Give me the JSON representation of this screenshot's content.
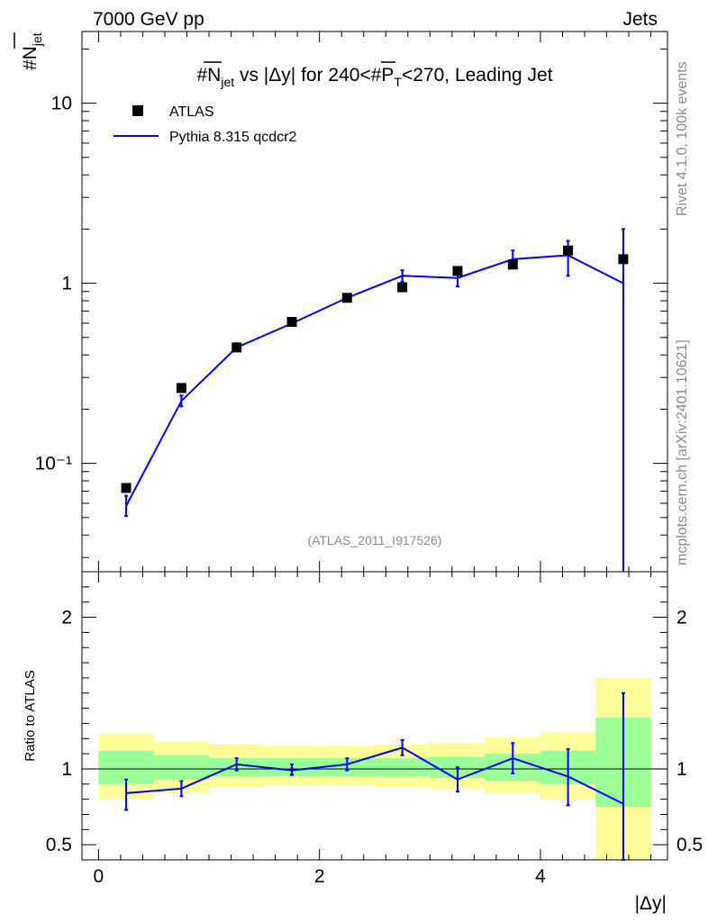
{
  "header": {
    "energy_label": "7000 GeV pp",
    "category_label": "Jets",
    "rivet_label": "Rivet 4.1.0,  100k events",
    "mcplots_label": "mcplots.cern.ch [arXiv:2401.10621]",
    "analysis_label": "(ATLAS_2011_I917526)"
  },
  "chart_data": {
    "type": "line",
    "title": "#N̅jet vs |Δy| for 240<#P̅T<270, Leading Jet",
    "title_parts": {
      "pre": "#",
      "n": "N",
      "jet": "jet",
      "mid": " vs |Δy| for 240<#",
      "p": "P",
      "t": "T",
      "post": "<270, Leading Jet"
    },
    "ylabel_parts": {
      "hash": "#",
      "n": "N",
      "jet": "jet"
    },
    "xlabel": "|Δy|",
    "ratio_ylabel": "Ratio to ATLAS",
    "xlim": [
      -0.15,
      5.15
    ],
    "ylim_main": [
      0.025,
      25
    ],
    "ylim_ratio": [
      0.4,
      2.3
    ],
    "yscale_main": "log",
    "xticks": [
      "0",
      "2",
      "4"
    ],
    "main_yticks": [
      "10⁻¹",
      "1",
      "10"
    ],
    "ratio_yticks": [
      "0.5",
      "1",
      "2"
    ],
    "legend": [
      {
        "name": "ATLAS",
        "marker": "square",
        "color": "#000000"
      },
      {
        "name": "Pythia 8.315 qcdcr2",
        "marker": "line",
        "color": "#0000ee"
      }
    ],
    "x_edges": [
      0,
      0.5,
      1,
      1.5,
      2,
      2.5,
      3,
      3.5,
      4,
      4.5,
      5
    ],
    "x_centers": [
      0.25,
      0.75,
      1.25,
      1.75,
      2.25,
      2.75,
      3.25,
      3.75,
      4.25,
      4.75
    ],
    "data_values": [
      0.073,
      0.262,
      0.44,
      0.61,
      0.83,
      0.95,
      1.17,
      1.27,
      1.52,
      1.36
    ],
    "mc_values": [
      0.058,
      0.222,
      0.44,
      0.598,
      0.83,
      1.1,
      1.07,
      1.36,
      1.43,
      1.0
    ],
    "mc_err_low": [
      0.051,
      0.207,
      0.42,
      0.58,
      0.8,
      1.02,
      0.96,
      1.23,
      1.1,
      0.001
    ],
    "mc_err_high": [
      0.066,
      0.238,
      0.465,
      0.617,
      0.86,
      1.18,
      1.17,
      1.52,
      1.72,
      2.0
    ],
    "ratio_mc": [
      0.84,
      0.87,
      1.03,
      0.99,
      1.03,
      1.14,
      0.93,
      1.07,
      0.95,
      0.77
    ],
    "ratio_err_low": [
      0.73,
      0.82,
      0.99,
      0.96,
      0.99,
      1.09,
      0.85,
      0.97,
      0.76,
      0.2
    ],
    "ratio_err_high": [
      0.93,
      0.92,
      1.07,
      1.03,
      1.07,
      1.19,
      1.01,
      1.17,
      1.13,
      1.5
    ],
    "band_yellow_low": [
      0.8,
      0.84,
      0.88,
      0.89,
      0.89,
      0.88,
      0.87,
      0.84,
      0.8,
      0.35
    ],
    "band_yellow_high": [
      1.23,
      1.18,
      1.16,
      1.15,
      1.15,
      1.16,
      1.17,
      1.21,
      1.24,
      1.6
    ],
    "band_green_low": [
      0.9,
      0.93,
      0.95,
      0.95,
      0.95,
      0.95,
      0.94,
      0.92,
      0.9,
      0.75
    ],
    "band_green_high": [
      1.12,
      1.09,
      1.07,
      1.07,
      1.07,
      1.07,
      1.08,
      1.1,
      1.12,
      1.34
    ]
  }
}
